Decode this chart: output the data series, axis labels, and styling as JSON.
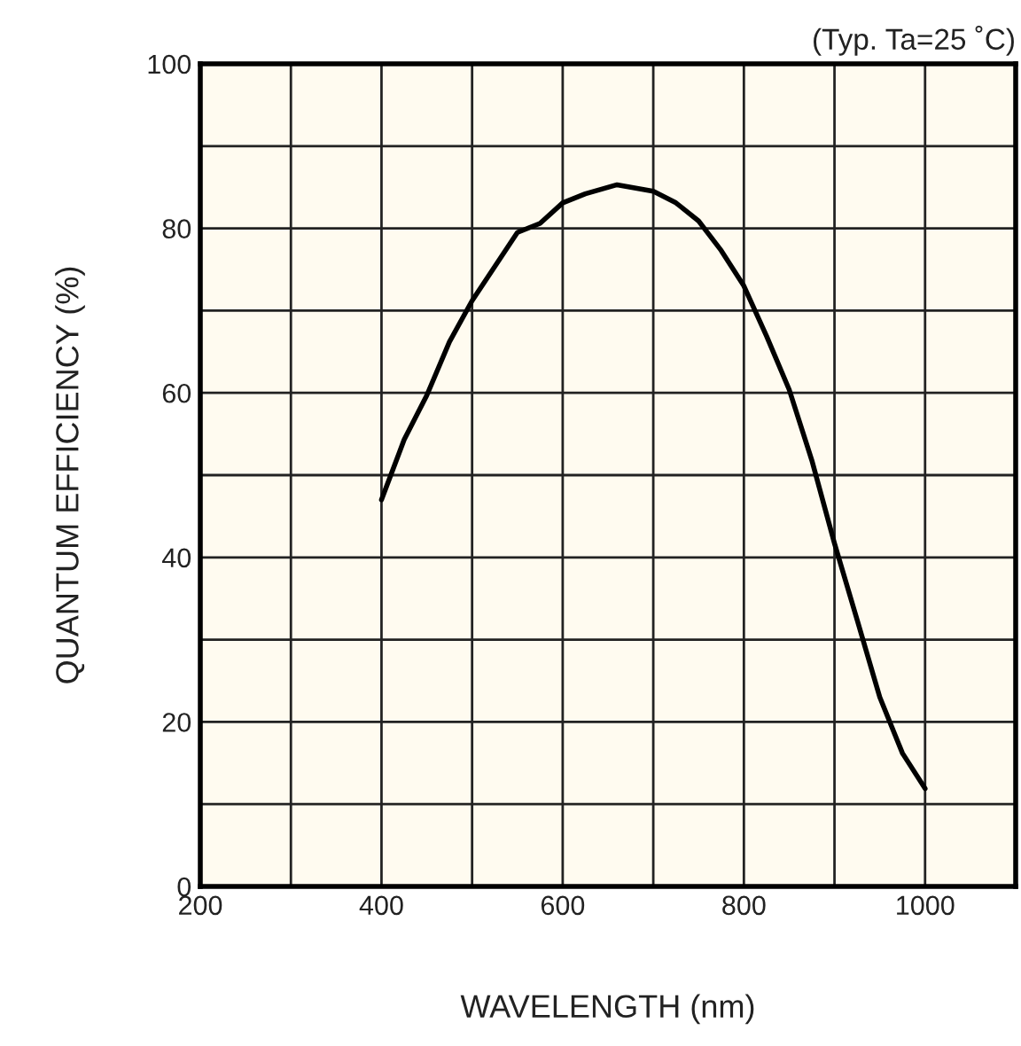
{
  "chart_data": {
    "type": "line",
    "xlabel": "WAVELENGTH (nm)",
    "ylabel": "QUANTUM EFFICIENCY (%)",
    "annotations": [
      "(Typ. Ta=25 ˚C)"
    ],
    "series": [
      {
        "color": "#000000",
        "x": [
          400,
          425,
          450,
          475,
          500,
          550,
          575,
          600,
          625,
          660,
          700,
          725,
          750,
          775,
          800,
          825,
          850,
          875,
          900,
          925,
          950,
          975,
          1000
        ],
        "values": [
          47,
          54.3,
          59.7,
          66.2,
          71.2,
          79.5,
          80.6,
          83.1,
          84.2,
          85.3,
          84.5,
          83.1,
          80.9,
          77.3,
          73,
          66.9,
          60.4,
          51.8,
          41.7,
          32.4,
          23,
          16.2,
          11.9
        ]
      }
    ],
    "xlim": [
      200,
      1100
    ],
    "xticks": [
      {
        "value": 200,
        "label": "200"
      },
      {
        "value": 300,
        "label": null
      },
      400,
      {
        "value": 500,
        "label": null
      },
      600,
      {
        "value": 700,
        "label": null
      },
      800,
      {
        "value": 900,
        "label": null
      },
      1000,
      {
        "value": 1100,
        "label": null
      }
    ],
    "ylim": [
      0,
      100
    ],
    "yticks": [
      0,
      {
        "value": 10,
        "label": null
      },
      20,
      {
        "value": 30,
        "label": null
      },
      40,
      {
        "value": 50,
        "label": null
      },
      60,
      {
        "value": 70,
        "label": null
      },
      80,
      {
        "value": 90,
        "label": null
      },
      100
    ],
    "grid": true,
    "marker": "none",
    "line_style": "solid",
    "legend": false
  }
}
